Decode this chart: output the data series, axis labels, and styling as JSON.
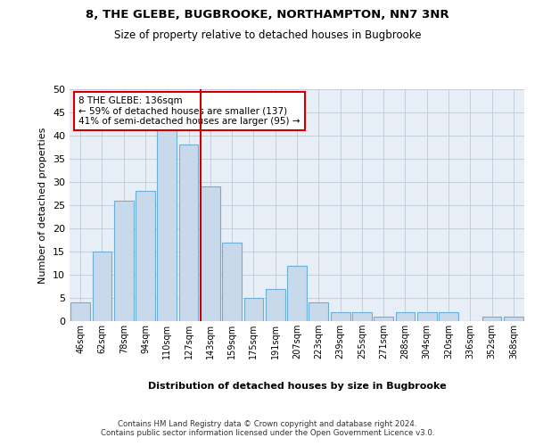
{
  "title1": "8, THE GLEBE, BUGBROOKE, NORTHAMPTON, NN7 3NR",
  "title2": "Size of property relative to detached houses in Bugbrooke",
  "xlabel": "Distribution of detached houses by size in Bugbrooke",
  "ylabel": "Number of detached properties",
  "categories": [
    "46sqm",
    "62sqm",
    "78sqm",
    "94sqm",
    "110sqm",
    "127sqm",
    "143sqm",
    "159sqm",
    "175sqm",
    "191sqm",
    "207sqm",
    "223sqm",
    "239sqm",
    "255sqm",
    "271sqm",
    "288sqm",
    "304sqm",
    "320sqm",
    "336sqm",
    "352sqm",
    "368sqm"
  ],
  "values": [
    4,
    15,
    26,
    28,
    42,
    38,
    29,
    17,
    5,
    7,
    12,
    4,
    2,
    2,
    1,
    2,
    2,
    2,
    0,
    1,
    1
  ],
  "bar_color": "#c9d9ec",
  "bar_edge_color": "#6baed6",
  "grid_color": "#c0c8d8",
  "bg_color": "#e8eef5",
  "vline_color": "#cc0000",
  "annotation_text": "8 THE GLEBE: 136sqm\n← 59% of detached houses are smaller (137)\n41% of semi-detached houses are larger (95) →",
  "footer": "Contains HM Land Registry data © Crown copyright and database right 2024.\nContains public sector information licensed under the Open Government Licence v3.0.",
  "ylim": [
    0,
    50
  ],
  "yticks": [
    0,
    5,
    10,
    15,
    20,
    25,
    30,
    35,
    40,
    45,
    50
  ],
  "vline_pos": 5.5625
}
